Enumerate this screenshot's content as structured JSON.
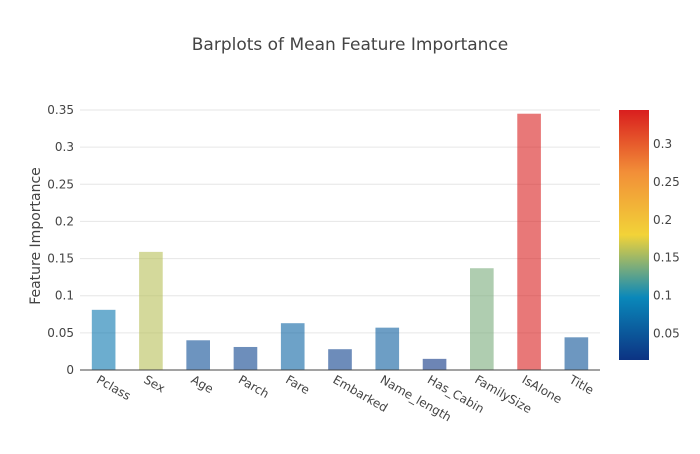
{
  "chart_data": {
    "type": "bar",
    "title": "Barplots of Mean Feature Importance",
    "xlabel": "",
    "ylabel": "Feature Importance",
    "categories": [
      "Pclass",
      "Sex",
      "Age",
      "Parch",
      "Fare",
      "Embarked",
      "Name_length",
      "Has_Cabin",
      "FamilySize",
      "IsAlone",
      "Title"
    ],
    "values": [
      0.081,
      0.159,
      0.04,
      0.031,
      0.063,
      0.028,
      0.057,
      0.015,
      0.137,
      0.345,
      0.044
    ],
    "ylim": [
      0,
      0.35
    ],
    "yticks": [
      0,
      0.05,
      0.1,
      0.15,
      0.2,
      0.25,
      0.3,
      0.35
    ],
    "ytick_labels": [
      "0",
      "0.05",
      "0.1",
      "0.15",
      "0.2",
      "0.25",
      "0.3",
      "0.35"
    ],
    "grid": true,
    "bar_opacity": 0.6,
    "colorscale": {
      "name": "Portland-like",
      "range": [
        0.015,
        0.345
      ],
      "stops": [
        "#0c3383",
        "#0a88ba",
        "#f2d338",
        "#f28f38",
        "#d91e1e"
      ],
      "ticks": [
        0.05,
        0.1,
        0.15,
        0.2,
        0.25,
        0.3
      ],
      "tick_labels": [
        "0.05",
        "0.1",
        "0.15",
        "0.2",
        "0.25",
        "0.3"
      ]
    }
  }
}
